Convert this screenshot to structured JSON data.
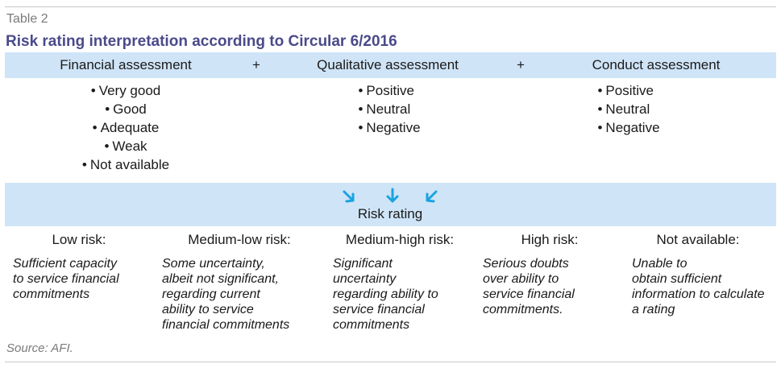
{
  "table_label": "Table 2",
  "title": "Risk rating interpretation according to Circular 6/2016",
  "assessments": [
    {
      "label": "Financial assessment",
      "items": [
        "Very good",
        "Good",
        "Adequate",
        "Weak",
        "Not available"
      ]
    },
    {
      "label": "Qualitative assessment",
      "items": [
        "Positive",
        "Neutral",
        "Negative"
      ]
    },
    {
      "label": "Conduct assessment",
      "items": [
        "Positive",
        "Neutral",
        "Negative"
      ]
    }
  ],
  "plus_sign": "+",
  "bullet_char": "•",
  "rating_label": "Risk rating",
  "accent_color": "#1aa3e0",
  "band_color": "#cfe4f7",
  "title_color": "#4a4a8a",
  "ratings": [
    {
      "label": "Low risk:",
      "desc": [
        "Sufficient capacity",
        "to service financial",
        "commitments"
      ]
    },
    {
      "label": "Medium-low risk:",
      "desc": [
        "Some uncertainty,",
        "albeit not significant,",
        "regarding current",
        "ability to service",
        "financial commitments"
      ]
    },
    {
      "label": "Medium-high risk:",
      "desc": [
        "Significant",
        "uncertainty",
        "regarding ability to",
        "service financial",
        "commitments"
      ]
    },
    {
      "label": "High risk:",
      "desc": [
        "Serious doubts",
        "over ability to",
        "service financial",
        "commitments."
      ]
    },
    {
      "label": "Not available:",
      "desc": [
        "Unable to",
        "obtain sufficient",
        "information to calculate a rating"
      ]
    }
  ],
  "source": "Source: AFI."
}
